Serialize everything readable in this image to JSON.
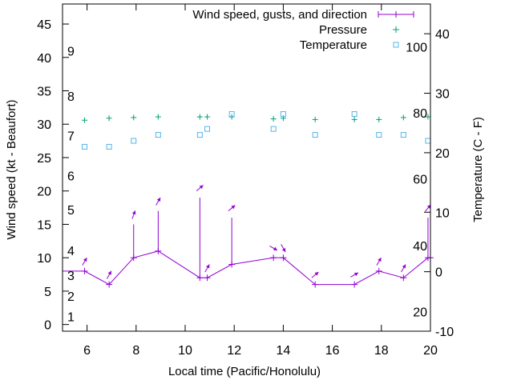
{
  "chart_data": {
    "type": "line",
    "xlabel": "Local time (Pacific/Honolulu)",
    "ylabel": "Wind speed (kt - Beaufort)",
    "y2label": "Temperature (C - F)",
    "xlim": [
      5,
      20
    ],
    "ylim": [
      -1,
      48
    ],
    "y2lim": [
      -10,
      45
    ],
    "x_ticks": [
      6,
      8,
      10,
      12,
      14,
      16,
      18,
      20
    ],
    "y_ticks": [
      0,
      5,
      10,
      15,
      20,
      25,
      30,
      35,
      40,
      45
    ],
    "y2_ticks": [
      -10,
      0,
      10,
      20,
      30,
      40
    ],
    "beaufort_labels": [
      {
        "label": "1",
        "y": 1.2
      },
      {
        "label": "2",
        "y": 4.3
      },
      {
        "label": "3",
        "y": 7.4
      },
      {
        "label": "4",
        "y": 11.1
      },
      {
        "label": "5",
        "y": 17.2
      },
      {
        "label": "6",
        "y": 22.3
      },
      {
        "label": "7",
        "y": 28.3
      },
      {
        "label": "8",
        "y": 34.2
      },
      {
        "label": "9",
        "y": 41.0
      }
    ],
    "fahrenheit_labels": [
      {
        "label": "20",
        "y2": -6.7
      },
      {
        "label": "40",
        "y2": 4.4
      },
      {
        "label": "60",
        "y2": 15.6
      },
      {
        "label": "80",
        "y2": 26.7
      },
      {
        "label": "100",
        "y2": 37.8
      }
    ],
    "legend": [
      "Wind speed, gusts, and direction",
      "Pressure",
      "Temperature"
    ],
    "series": [
      {
        "name": "Wind speed, gusts, and direction",
        "color": "#9400d3",
        "x": [
          4.9,
          5.9,
          6.9,
          7.9,
          8.9,
          10.6,
          10.9,
          11.9,
          13.6,
          14.0,
          15.3,
          16.9,
          17.9,
          18.9,
          19.9,
          20.0
        ],
        "speed": [
          8,
          8,
          6,
          10,
          11,
          7,
          7,
          9,
          10,
          10,
          6,
          6,
          8,
          7,
          10,
          10
        ],
        "gust": [
          8,
          8,
          6,
          15,
          17,
          19,
          7,
          16,
          10,
          10,
          6,
          6,
          8,
          7,
          16,
          16
        ],
        "direction_deg": [
          0,
          210,
          210,
          200,
          210,
          230,
          210,
          230,
          300,
          330,
          230,
          240,
          210,
          210,
          220,
          220
        ]
      },
      {
        "name": "Pressure",
        "color": "#009e73",
        "marker": "+",
        "x": [
          5.9,
          6.9,
          7.9,
          8.9,
          10.6,
          10.9,
          11.9,
          13.6,
          14.0,
          15.3,
          16.9,
          17.9,
          18.9,
          19.9
        ],
        "values": [
          30.6,
          30.9,
          31.0,
          31.1,
          31.1,
          31.1,
          31.1,
          30.8,
          30.9,
          30.7,
          30.7,
          30.7,
          31.0,
          31.1
        ]
      },
      {
        "name": "Temperature",
        "color": "#56b4e9",
        "marker": "square",
        "axis": "y2",
        "x": [
          5.9,
          6.9,
          7.9,
          8.9,
          10.6,
          10.9,
          11.9,
          13.6,
          14.0,
          15.3,
          16.9,
          17.9,
          18.9,
          19.9
        ],
        "values": [
          21.0,
          21.0,
          22.0,
          23.0,
          23.0,
          24.0,
          26.5,
          24.0,
          26.5,
          23.0,
          26.5,
          23.0,
          23.0,
          22.0
        ]
      }
    ]
  }
}
